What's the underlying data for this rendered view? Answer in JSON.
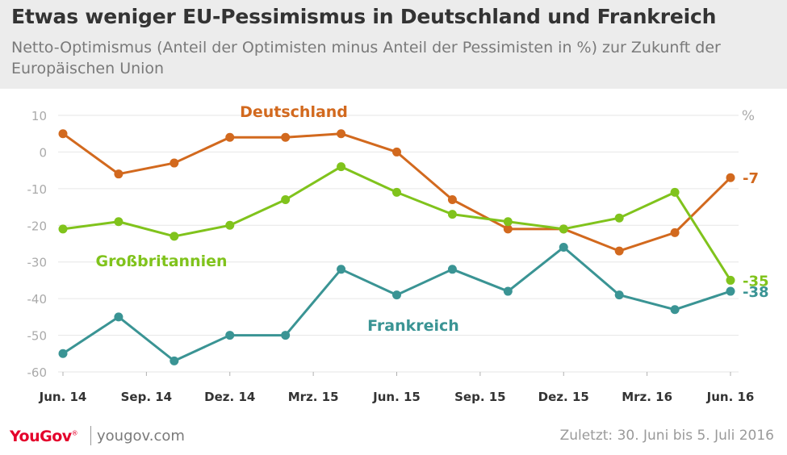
{
  "title": "Etwas weniger EU-Pessimismus in Deutschland und Frankreich",
  "subtitle": "Netto-Optimismus (Anteil der Optimisten minus Anteil der Pessimisten in %) zur Zukunft der Europäischen Union",
  "footer": {
    "logo": "YouGov",
    "logo_mark": "®",
    "site": "yougov.com",
    "note": "Zuletzt: 30. Juni bis 5. Juli 2016"
  },
  "colors": {
    "deutschland": "#d2691e",
    "grossbritannien": "#80c31c",
    "frankreich": "#3a9494",
    "axis_text": "#aaaaaa",
    "grid": "#e6e6e6",
    "yougov_red": "#e4002b"
  },
  "chart_data": {
    "type": "line",
    "unit_label": "%",
    "ylim": [
      -60,
      10
    ],
    "yticks": [
      10,
      0,
      -10,
      -20,
      -30,
      -40,
      -50,
      -60
    ],
    "grid": true,
    "x_tick_labels": [
      "Jun. 14",
      "Sep. 14",
      "Dez. 14",
      "Mrz. 15",
      "Jun. 15",
      "Sep. 15",
      "Dez. 15",
      "Mrz. 16",
      "Jun. 16"
    ],
    "series": [
      {
        "name": "Deutschland",
        "key": "deutschland",
        "values": [
          5,
          -6,
          -3,
          4,
          4,
          5,
          0,
          -13,
          -21,
          -21,
          -27,
          -22,
          -7
        ],
        "end_label": "-7"
      },
      {
        "name": "Großbritannien",
        "key": "grossbritannien",
        "values": [
          -21,
          -19,
          -23,
          -20,
          -13,
          -4,
          -11,
          -17,
          -19,
          -21,
          -18,
          -11,
          -35
        ],
        "end_label": "-35"
      },
      {
        "name": "Frankreich",
        "key": "frankreich",
        "values": [
          -55,
          -45,
          -57,
          -50,
          -50,
          -32,
          -39,
          -32,
          -38,
          -26,
          -39,
          -43,
          -38
        ],
        "end_label": "-38"
      }
    ]
  }
}
